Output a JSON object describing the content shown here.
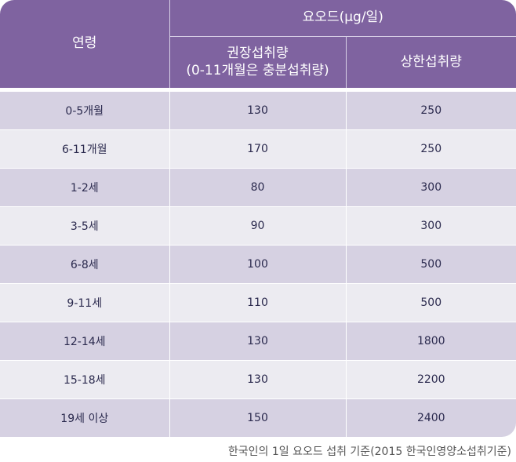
{
  "header": {
    "age_label": "연령",
    "iodine_label": "요오드(μg/일)",
    "recommended_label": "권장섭취량",
    "recommended_note": "(0-11개월은 충분섭취량)",
    "upper_label": "상한섭취량"
  },
  "rows": [
    {
      "age": "0-5개월",
      "recommended": "130",
      "upper": "250"
    },
    {
      "age": "6-11개월",
      "recommended": "170",
      "upper": "250"
    },
    {
      "age": "1-2세",
      "recommended": "80",
      "upper": "300"
    },
    {
      "age": "3-5세",
      "recommended": "90",
      "upper": "300"
    },
    {
      "age": "6-8세",
      "recommended": "100",
      "upper": "500"
    },
    {
      "age": "9-11세",
      "recommended": "110",
      "upper": "500"
    },
    {
      "age": "12-14세",
      "recommended": "130",
      "upper": "1800"
    },
    {
      "age": "15-18세",
      "recommended": "130",
      "upper": "2200"
    },
    {
      "age": "19세 이상",
      "recommended": "150",
      "upper": "2400"
    }
  ],
  "caption": "한국인의 1일 요오드 섭취 기준(2015 한국인영양소섭취기준)",
  "colors": {
    "header": "#7f63a0",
    "row_dark": "#d6d1e2",
    "row_light": "#ecebf1"
  }
}
